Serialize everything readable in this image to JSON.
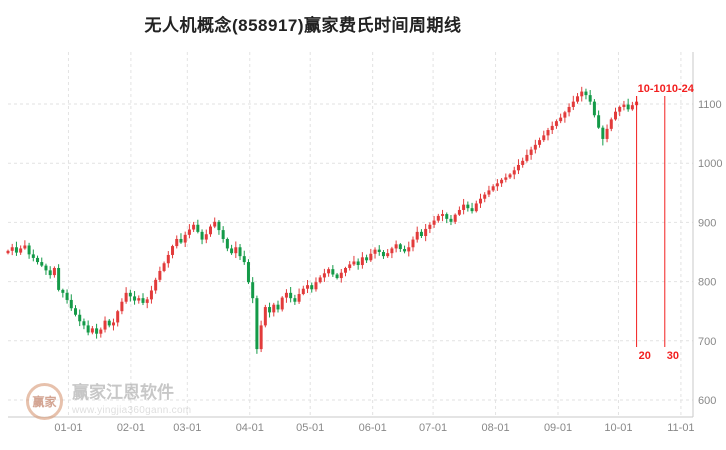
{
  "watermark": {
    "name": "赢家江恩软件",
    "url": "www.yingjia360gann.com",
    "logo_text": "赢家"
  },
  "chart_data": {
    "type": "candlestick",
    "title": "无人机概念(858917)赢家费氏时间周期线",
    "legend": [],
    "grid": true,
    "y_axis": {
      "side": "right",
      "ticks": [
        600,
        700,
        800,
        900,
        1000,
        1100
      ],
      "range": [
        572,
        1190
      ]
    },
    "x_axis": {
      "ticks": [
        {
          "label": "01-01",
          "day": 30
        },
        {
          "label": "02-01",
          "day": 61
        },
        {
          "label": "03-01",
          "day": 89
        },
        {
          "label": "04-01",
          "day": 120
        },
        {
          "label": "05-01",
          "day": 150
        },
        {
          "label": "06-01",
          "day": 181
        },
        {
          "label": "07-01",
          "day": 211
        },
        {
          "label": "08-01",
          "day": 242
        },
        {
          "label": "09-01",
          "day": 273
        },
        {
          "label": "10-01",
          "day": 303
        },
        {
          "label": "11-01",
          "day": 334
        }
      ]
    },
    "fib_lines": [
      {
        "top_label": "10-10",
        "bottom_label": "20",
        "day": 312
      },
      {
        "top_label": "10-24",
        "bottom_label": "30",
        "day": 326
      }
    ],
    "colors": {
      "up": "#e23b3b",
      "down": "#149a48",
      "fib": "#f21f1f",
      "grid": "#e2e2e2",
      "axis": "#c8c8c8",
      "tick_text": "#888888"
    },
    "series": {
      "name": "price",
      "start_day": 0,
      "end_day": 312,
      "closes": [
        852,
        858,
        849,
        856,
        861,
        846,
        840,
        833,
        827,
        819,
        811,
        823,
        786,
        781,
        769,
        755,
        744,
        733,
        726,
        714,
        721,
        712,
        719,
        734,
        726,
        731,
        750,
        766,
        781,
        775,
        768,
        772,
        764,
        770,
        785,
        803,
        818,
        831,
        845,
        860,
        872,
        866,
        879,
        888,
        896,
        884,
        871,
        880,
        893,
        901,
        887,
        872,
        856,
        848,
        858,
        843,
        833,
        799,
        772,
        686,
        726,
        757,
        748,
        761,
        753,
        773,
        781,
        772,
        766,
        779,
        788,
        794,
        787,
        799,
        807,
        814,
        821,
        812,
        806,
        815,
        823,
        829,
        834,
        828,
        841,
        836,
        847,
        854,
        850,
        843,
        848,
        856,
        863,
        855,
        851,
        858,
        871,
        884,
        877,
        889,
        896,
        903,
        911,
        914,
        906,
        901,
        913,
        921,
        930,
        924,
        919,
        932,
        940,
        947,
        954,
        961,
        966,
        972,
        976,
        981,
        988,
        997,
        1004,
        1014,
        1023,
        1031,
        1039,
        1047,
        1056,
        1063,
        1071,
        1077,
        1086,
        1095,
        1104,
        1113,
        1121,
        1115,
        1104,
        1081,
        1060,
        1041,
        1058,
        1074,
        1087,
        1095,
        1099,
        1091,
        1098,
        1104
      ],
      "wick_low_overrides": {
        "59": 678,
        "141": 1030
      },
      "wick_high_overrides": {
        "136": 1129
      }
    }
  }
}
